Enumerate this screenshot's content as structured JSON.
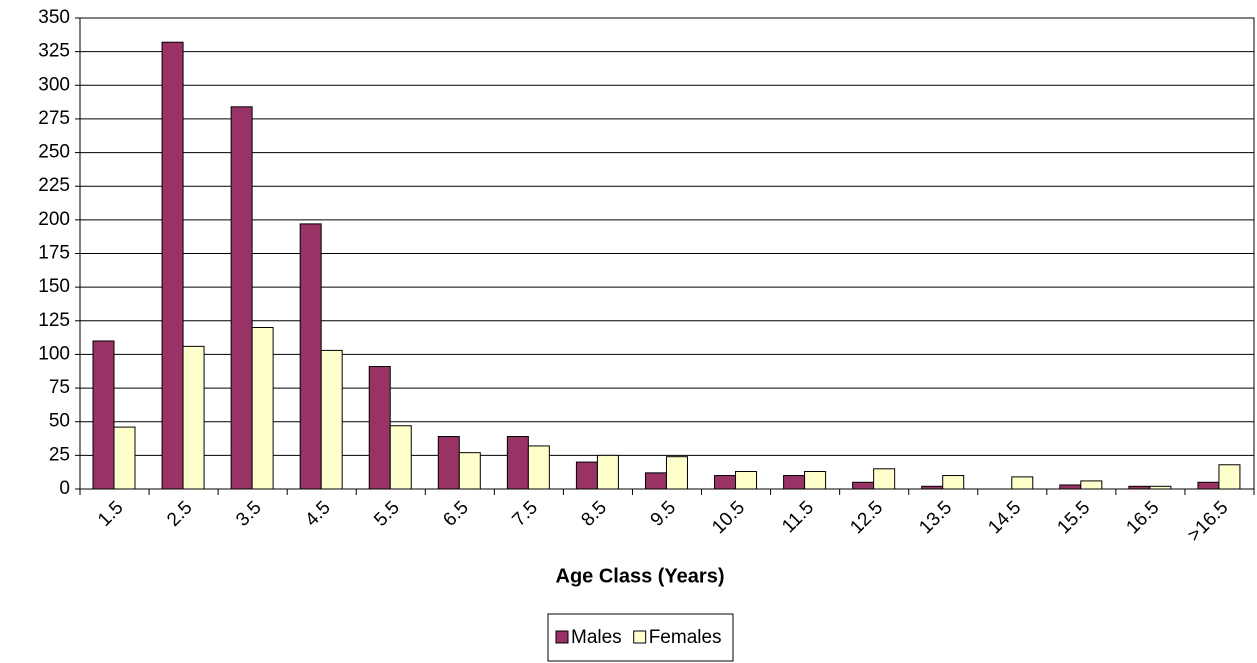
{
  "chart_data": {
    "type": "bar",
    "x_label": "Age Class (Years)",
    "categories": [
      "1.5",
      "2.5",
      "3.5",
      "4.5",
      "5.5",
      "6.5",
      "7.5",
      "8.5",
      "9.5",
      "10.5",
      "11.5",
      "12.5",
      "13.5",
      "14.5",
      "15.5",
      "16.5",
      ">16.5"
    ],
    "series": [
      {
        "name": "Males",
        "color": "#993366",
        "values": [
          110,
          332,
          284,
          197,
          91,
          39,
          39,
          20,
          12,
          10,
          10,
          5,
          2,
          0,
          3,
          2,
          5
        ]
      },
      {
        "name": "Females",
        "color": "#ffffcc",
        "values": [
          46,
          106,
          120,
          103,
          47,
          27,
          32,
          25,
          24,
          13,
          13,
          15,
          10,
          9,
          6,
          2,
          18
        ]
      }
    ],
    "ylim": [
      0,
      350
    ],
    "yticks": [
      0,
      25,
      50,
      75,
      100,
      125,
      150,
      175,
      200,
      225,
      250,
      275,
      300,
      325,
      350
    ],
    "grid": true,
    "legend": "bottom"
  }
}
